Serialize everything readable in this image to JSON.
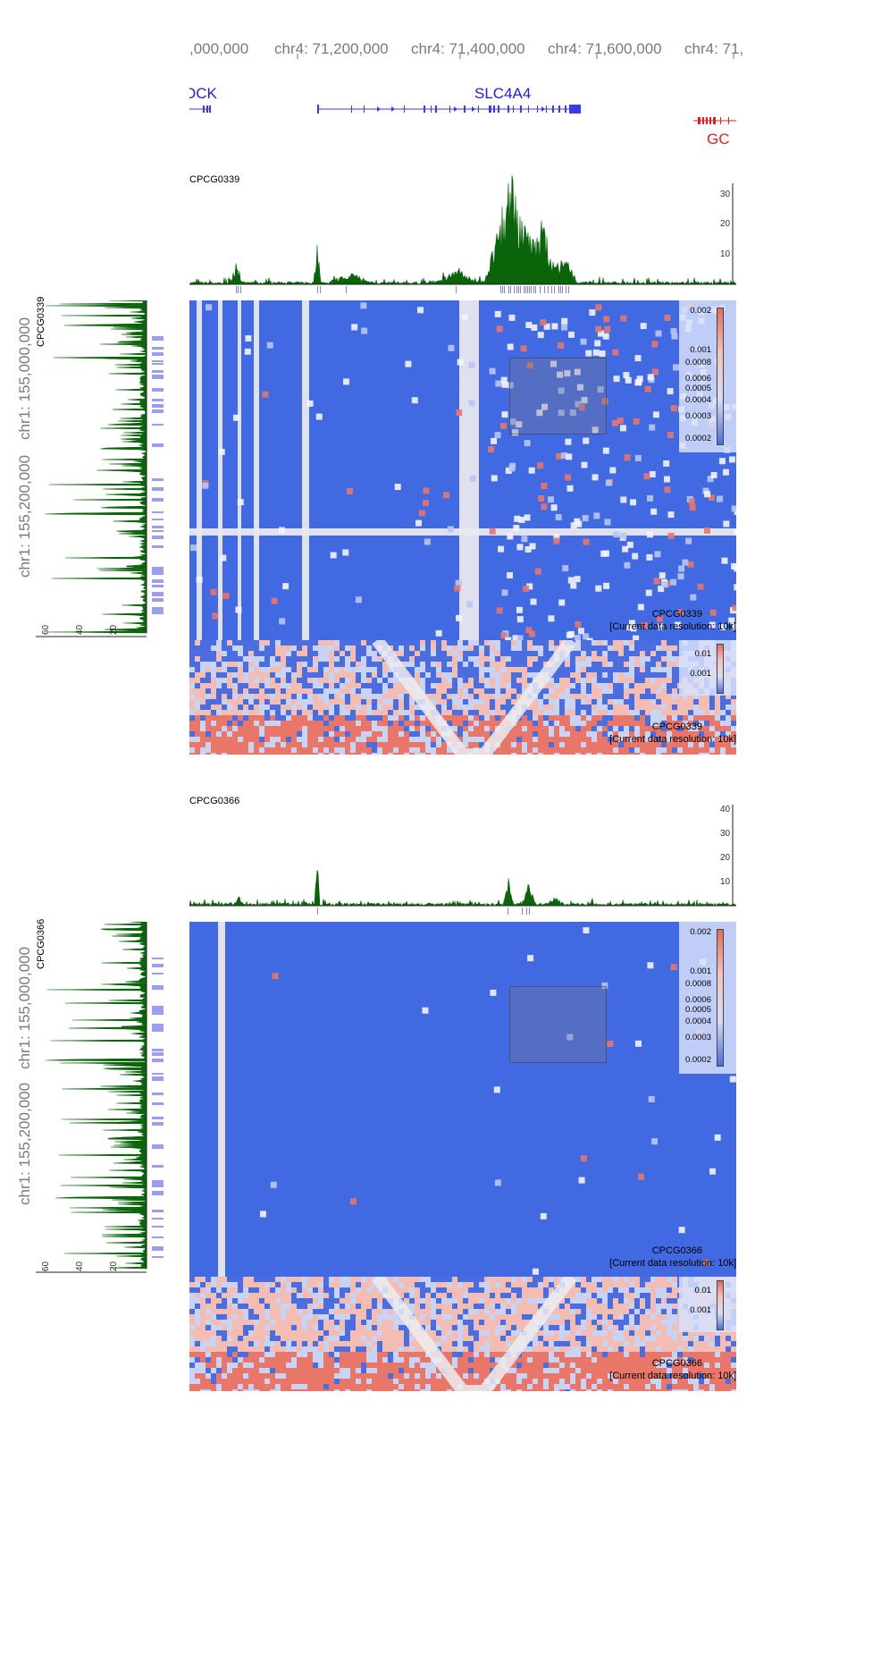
{
  "top_axis": {
    "labels": [
      ",000,000",
      "chr4: 71,200,000",
      "chr4: 71,400,000",
      "chr4: 71,600,000",
      "chr4: 71,"
    ]
  },
  "genes": {
    "items": [
      {
        "name": "OCK",
        "strand": "plus",
        "color": "#1e1ee6"
      },
      {
        "name": "SLC4A4",
        "strand": "plus",
        "color": "#1e1ee6"
      },
      {
        "name": "GC",
        "strand": "minus",
        "color": "#e61e1e"
      }
    ]
  },
  "panels": [
    {
      "sample": "CPCG0339",
      "signal_ticks": [
        "30",
        "20",
        "10"
      ],
      "left_axis_labels": [
        "chr1: 155,000,000",
        "chr1: 155,200,000"
      ],
      "left_ticks": [
        "60",
        "40",
        "20"
      ],
      "legend_main": [
        "0.002",
        "0.001",
        "0.0008",
        "0.0006",
        "0.0005",
        "0.0004",
        "0.0003",
        "0.0002"
      ],
      "legend_tri": [
        "0.01",
        "0.001"
      ],
      "resolution_text": "[Current data resolution: 10k]"
    },
    {
      "sample": "CPCG0366",
      "signal_ticks": [
        "40",
        "30",
        "20",
        "10"
      ],
      "left_axis_labels": [
        "chr1: 155,000,000",
        "chr1: 155,200,000"
      ],
      "left_ticks": [
        "60",
        "40",
        "20"
      ],
      "legend_main": [
        "0.002",
        "0.001",
        "0.0008",
        "0.0006",
        "0.0005",
        "0.0004",
        "0.0003",
        "0.0002"
      ],
      "legend_tri": [
        "0.01",
        "0.001"
      ],
      "resolution_text": "[Current data resolution: 10k]"
    }
  ],
  "colors": {
    "heatmap_blue": "#4169e1",
    "signal_green": "#0a640a",
    "gene_blue": "#1e1ee6",
    "gene_red": "#e61e1e",
    "contact_red": "#e8776a"
  }
}
